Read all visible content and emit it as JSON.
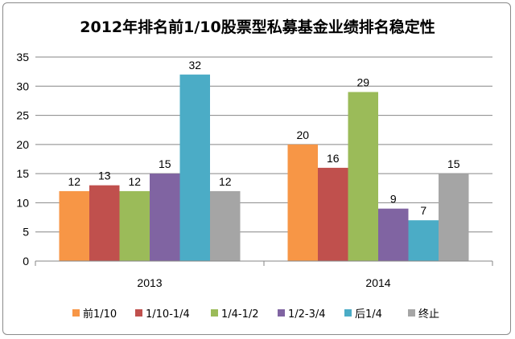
{
  "chart_data": {
    "type": "bar",
    "title": "2012年排名前1/10股票型私募基金业绩排名稳定性",
    "xlabel": "",
    "ylabel": "",
    "categories": [
      "2013",
      "2014"
    ],
    "ylim": [
      0,
      35
    ],
    "yticks": [
      0,
      5,
      10,
      15,
      20,
      25,
      30,
      35
    ],
    "grid": true,
    "legend_position": "bottom",
    "series": [
      {
        "name": "前1/10",
        "color": "#f79646",
        "values": [
          12,
          20
        ]
      },
      {
        "name": "1/10-1/4",
        "color": "#c0504d",
        "values": [
          13,
          16
        ]
      },
      {
        "name": "1/4-1/2",
        "color": "#9bbb59",
        "values": [
          12,
          29
        ]
      },
      {
        "name": "1/2-3/4",
        "color": "#8064a2",
        "values": [
          15,
          9
        ]
      },
      {
        "name": "后1/4",
        "color": "#4bacc6",
        "values": [
          32,
          7
        ]
      },
      {
        "name": "终止",
        "color": "#a5a5a5",
        "values": [
          12,
          15
        ]
      }
    ]
  }
}
